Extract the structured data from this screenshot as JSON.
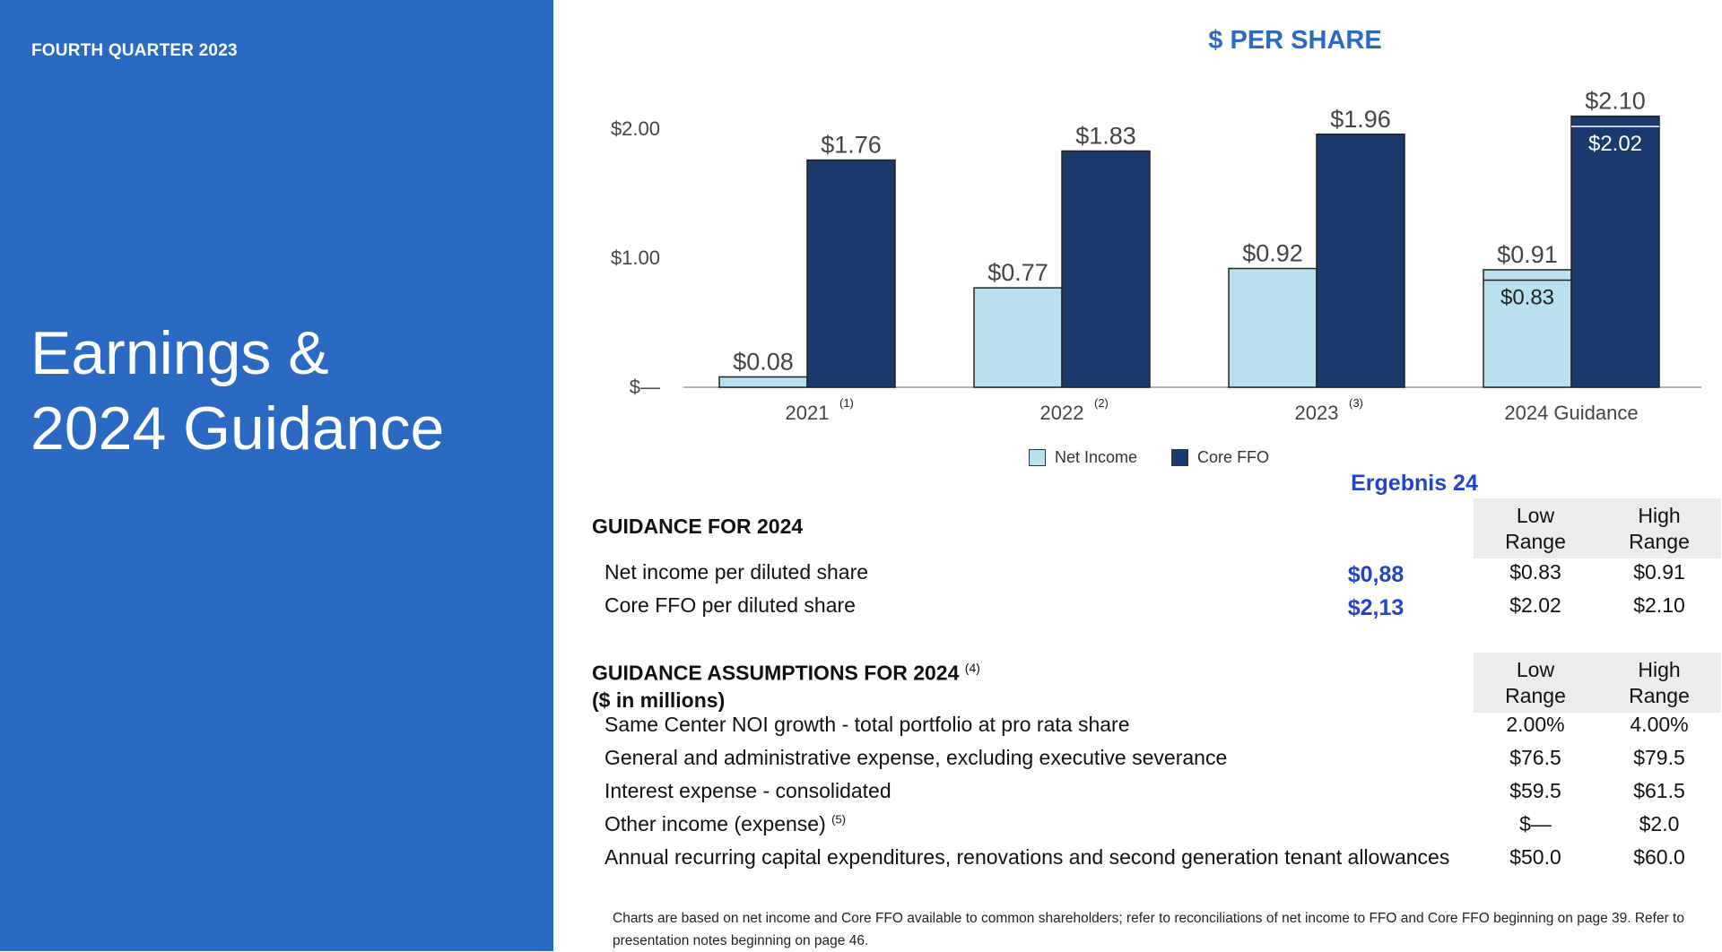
{
  "header": {
    "quarter": "FOURTH QUARTER 2023"
  },
  "title": {
    "line1": "Earnings &",
    "line2": "2024 Guidance"
  },
  "colors": {
    "panel": "#2b6ac2",
    "net_income": "#b8e0ee",
    "core_ffo": "#1a3a6e",
    "ergebnis": "#2244cc"
  },
  "chart_data": {
    "type": "bar",
    "title": "$ PER SHARE",
    "categories": [
      "2021",
      "2022",
      "2023",
      "2024 Guidance"
    ],
    "category_superscripts": [
      "(1)",
      "(2)",
      "(3)",
      ""
    ],
    "series": [
      {
        "name": "Net Income",
        "values": [
          0.08,
          0.77,
          0.92,
          0.91
        ],
        "labels": [
          "$0.08",
          "$0.77",
          "$0.92",
          "$0.91"
        ],
        "range_low": [
          null,
          null,
          null,
          0.83
        ],
        "range_low_label": "$0.83"
      },
      {
        "name": "Core FFO",
        "values": [
          1.76,
          1.83,
          1.96,
          2.1
        ],
        "labels": [
          "$1.76",
          "$1.83",
          "$1.96",
          "$2.10"
        ],
        "range_low": [
          null,
          null,
          null,
          2.02
        ],
        "range_low_label": "$2.02"
      }
    ],
    "yticks": [
      0,
      1,
      2
    ],
    "ytick_labels": [
      "$—",
      "$1.00",
      "$2.00"
    ],
    "ylim": [
      0,
      2.2
    ],
    "grid": false,
    "legend": "bottom"
  },
  "ergebnis": {
    "title": "Ergebnis 24",
    "net_income": "$0,88",
    "core_ffo": "$2,13"
  },
  "guidance": {
    "heading": "GUIDANCE FOR 2024",
    "low_header": [
      "Low",
      "Range"
    ],
    "high_header": [
      "High",
      "Range"
    ],
    "rows": [
      {
        "label": "Net income per diluted share",
        "low": "$0.83",
        "high": "$0.91"
      },
      {
        "label": "Core FFO per diluted share",
        "low": "$2.02",
        "high": "$2.10"
      }
    ]
  },
  "assumptions": {
    "heading": "GUIDANCE ASSUMPTIONS FOR 2024",
    "heading_sup": "(4)",
    "subheading": "($ in millions)",
    "low_header": [
      "Low",
      "Range"
    ],
    "high_header": [
      "High",
      "Range"
    ],
    "rows": [
      {
        "label": "Same Center NOI growth - total portfolio at pro rata share",
        "sup": "",
        "low": "2.00%",
        "high": "4.00%"
      },
      {
        "label": "General and administrative expense, excluding executive severance",
        "sup": "",
        "low": "$76.5",
        "high": "$79.5"
      },
      {
        "label": "Interest expense - consolidated",
        "sup": "",
        "low": "$59.5",
        "high": "$61.5"
      },
      {
        "label": "Other income (expense)",
        "sup": "(5)",
        "low": "$—",
        "high": "$2.0"
      },
      {
        "label": "Annual recurring capital expenditures, renovations and second generation tenant allowances",
        "sup": "",
        "low": "$50.0",
        "high": "$60.0"
      }
    ]
  },
  "footnote": "Charts are based on net income and Core FFO available to common shareholders; refer to reconciliations of net income to FFO and Core FFO beginning on page 39. Refer to presentation notes beginning on page 46."
}
